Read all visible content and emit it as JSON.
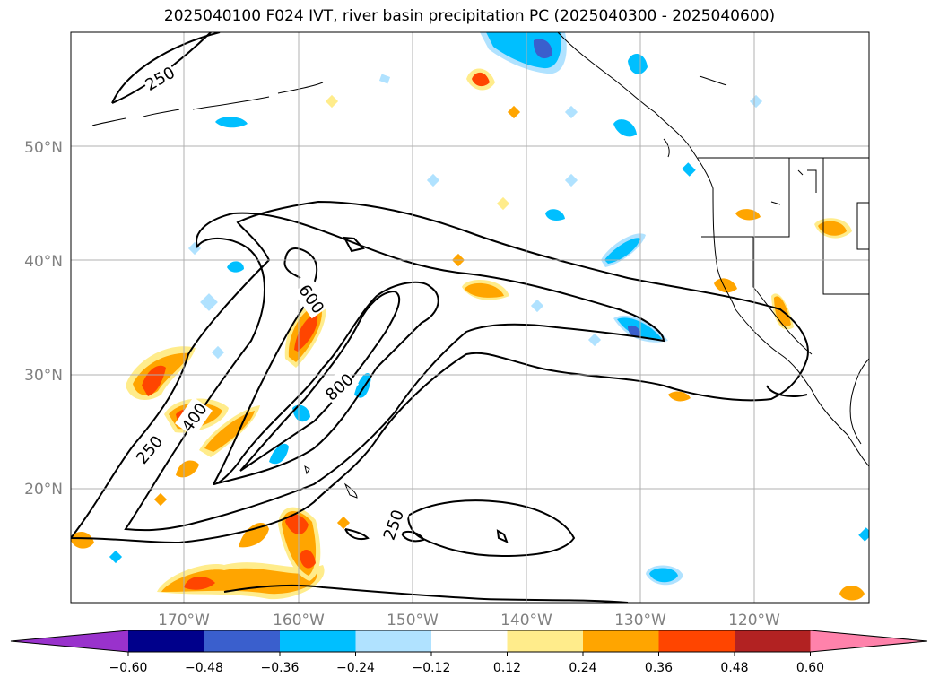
{
  "title": "2025040100 F024 IVT, river basin precipitation PC (2025040300 - 2025040600)",
  "map": {
    "lat_labels": [
      "50°N",
      "40°N",
      "30°N",
      "20°N"
    ],
    "lon_labels": [
      "170°W",
      "160°W",
      "150°W",
      "140°W",
      "130°W",
      "120°W"
    ],
    "contour_labels": [
      "250",
      "600",
      "400",
      "250",
      "800",
      "250"
    ]
  },
  "colorbar": {
    "colors": [
      "#9932cc",
      "#00008b",
      "#3a5fcd",
      "#00bfff",
      "#b0e2ff",
      "#ffffff",
      "#ffec8b",
      "#ffa500",
      "#ff4500",
      "#b22222",
      "#ff82ab"
    ],
    "ticks": [
      "−0.60",
      "−0.48",
      "−0.36",
      "−0.24",
      "−0.12",
      "0.12",
      "0.24",
      "0.36",
      "0.48",
      "0.60"
    ]
  }
}
